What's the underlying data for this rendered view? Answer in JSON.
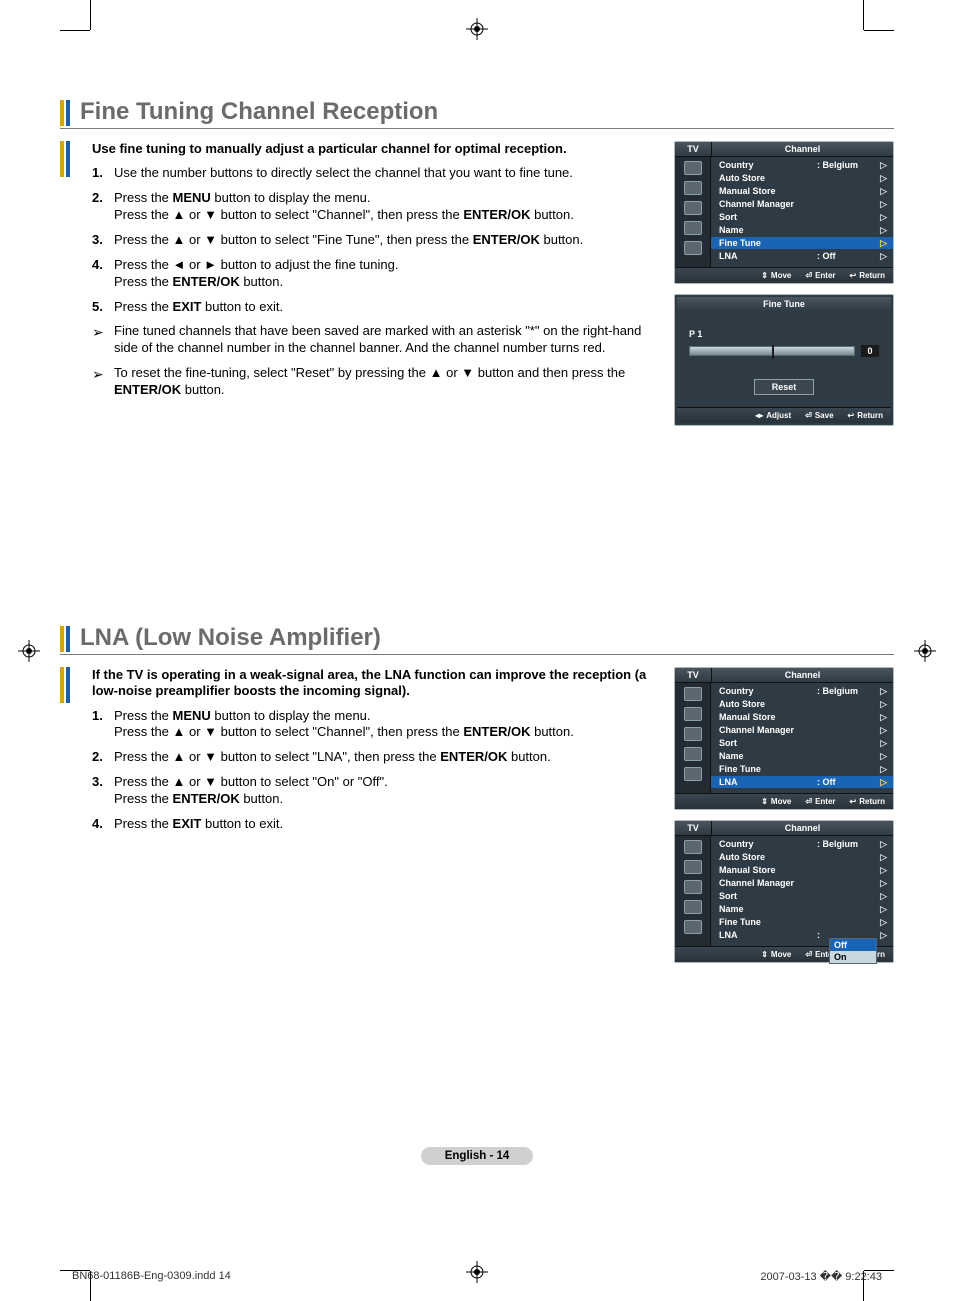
{
  "section1": {
    "title": "Fine Tuning Channel Reception",
    "intro": "Use fine tuning to manually adjust a particular channel for optimal reception.",
    "steps": [
      {
        "n": "1.",
        "t": "Use the number buttons to directly select the channel that you want to fine tune."
      },
      {
        "n": "2.",
        "t": "Press the <b>MENU</b> button to display the menu.<br>Press the ▲ or ▼ button to select \"Channel\", then press the <b>ENTER/OK</b> button."
      },
      {
        "n": "3.",
        "t": "Press the ▲ or ▼ button to select \"Fine Tune\", then press the <b>ENTER/OK</b> button."
      },
      {
        "n": "4.",
        "t": "Press the ◄ or ► button to adjust the fine tuning.<br>Press the <b>ENTER/OK</b> button."
      },
      {
        "n": "5.",
        "t": "Press the <b>EXIT</b> button to exit."
      }
    ],
    "notes": [
      "Fine tuned channels that have been saved are marked with an asterisk \"*\" on the right-hand side of the channel number in the channel banner.  And the channel number turns red.",
      "To reset the fine-tuning, select \"Reset\" by pressing the ▲ or ▼ button and then press the <b>ENTER/OK</b> button."
    ],
    "osd1": {
      "tv": "TV",
      "title": "Channel",
      "rows": [
        {
          "lab": "Country",
          "val": ": Belgium",
          "hl": false
        },
        {
          "lab": "Auto Store",
          "val": "",
          "hl": false
        },
        {
          "lab": "Manual Store",
          "val": "",
          "hl": false
        },
        {
          "lab": "Channel Manager",
          "val": "",
          "hl": false
        },
        {
          "lab": "Sort",
          "val": "",
          "hl": false
        },
        {
          "lab": "Name",
          "val": "",
          "hl": false
        },
        {
          "lab": "Fine Tune",
          "val": "",
          "hl": true
        },
        {
          "lab": "LNA",
          "val": ": Off",
          "hl": false
        }
      ],
      "footer": [
        {
          "i": "⇕",
          "t": "Move"
        },
        {
          "i": "⏎",
          "t": "Enter"
        },
        {
          "i": "↩",
          "t": "Return"
        }
      ]
    },
    "osd_ft": {
      "title": "Fine Tune",
      "channel": "P 1",
      "value": "0",
      "reset": "Reset",
      "footer": [
        {
          "i": "◂▸",
          "t": "Adjust"
        },
        {
          "i": "⏎",
          "t": "Save"
        },
        {
          "i": "↩",
          "t": "Return"
        }
      ]
    }
  },
  "section2": {
    "title": "LNA (Low Noise Amplifier)",
    "intro": "If the TV is operating in a weak-signal area, the LNA function can improve the reception (a low-noise preamplifier boosts the incoming signal).",
    "steps": [
      {
        "n": "1.",
        "t": "Press the <b>MENU</b> button to display the menu.<br>Press the ▲ or ▼ button to select \"Channel\", then press the <b>ENTER/OK</b> button."
      },
      {
        "n": "2.",
        "t": "Press the ▲ or ▼ button to select \"LNA\", then press the <b>ENTER/OK</b> button."
      },
      {
        "n": "3.",
        "t": "Press the ▲ or ▼ button to select \"On\" or \"Off\".<br>Press the <b>ENTER/OK</b> button."
      },
      {
        "n": "4.",
        "t": "Press the <b>EXIT</b> button to exit."
      }
    ],
    "osd1": {
      "tv": "TV",
      "title": "Channel",
      "rows": [
        {
          "lab": "Country",
          "val": ": Belgium",
          "hl": false
        },
        {
          "lab": "Auto Store",
          "val": "",
          "hl": false
        },
        {
          "lab": "Manual Store",
          "val": "",
          "hl": false
        },
        {
          "lab": "Channel Manager",
          "val": "",
          "hl": false
        },
        {
          "lab": "Sort",
          "val": "",
          "hl": false
        },
        {
          "lab": "Name",
          "val": "",
          "hl": false
        },
        {
          "lab": "Fine Tune",
          "val": "",
          "hl": false
        },
        {
          "lab": "LNA",
          "val": ": Off",
          "hl": true
        }
      ],
      "footer": [
        {
          "i": "⇕",
          "t": "Move"
        },
        {
          "i": "⏎",
          "t": "Enter"
        },
        {
          "i": "↩",
          "t": "Return"
        }
      ]
    },
    "osd2": {
      "tv": "TV",
      "title": "Channel",
      "rows": [
        {
          "lab": "Country",
          "val": ": Belgium",
          "hl": false
        },
        {
          "lab": "Auto Store",
          "val": "",
          "hl": false
        },
        {
          "lab": "Manual Store",
          "val": "",
          "hl": false
        },
        {
          "lab": "Channel Manager",
          "val": "",
          "hl": false
        },
        {
          "lab": "Sort",
          "val": "",
          "hl": false
        },
        {
          "lab": "Name",
          "val": "",
          "hl": false
        },
        {
          "lab": "Fine Tune",
          "val": "",
          "hl": false
        },
        {
          "lab": "LNA",
          "val": ":",
          "hl": false,
          "dd": true
        }
      ],
      "dd_opts": [
        {
          "t": "Off",
          "sel": true
        },
        {
          "t": "On",
          "sel": false
        }
      ],
      "footer": [
        {
          "i": "⇕",
          "t": "Move"
        },
        {
          "i": "⏎",
          "t": "Enter"
        },
        {
          "i": "↩",
          "t": "Return"
        }
      ]
    }
  },
  "foot_page": "English - 14",
  "print_file": "BN68-01186B-Eng-0309.indd   14",
  "print_ts": "2007-03-13   �� 9:22:43",
  "colors": {
    "title": "#6b6b6b",
    "accent1": "#d9a500",
    "accent2": "#1a5faa",
    "osd_bg": "#2e3a44",
    "osd_hl": "#1a64b6",
    "pill_bg": "#d0d0d0"
  }
}
